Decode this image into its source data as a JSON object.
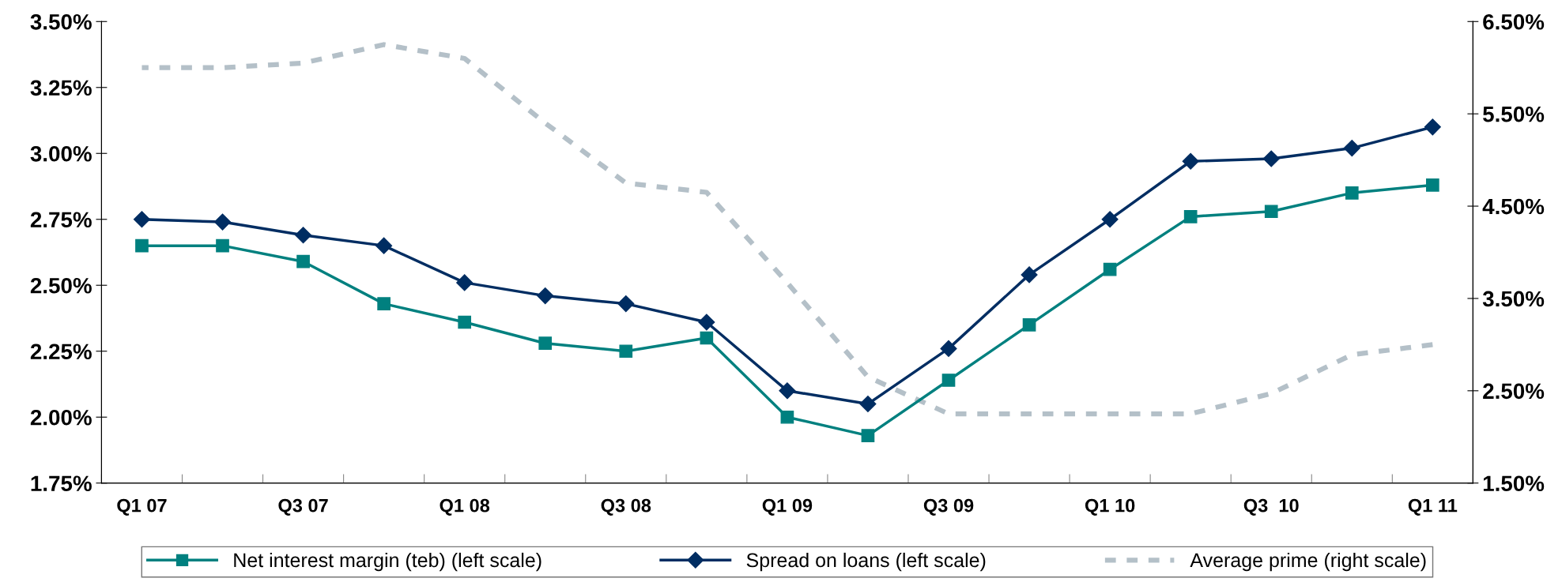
{
  "chart_data": {
    "type": "line",
    "categories": [
      "Q1 07",
      null,
      "Q3 07",
      null,
      "Q1 08",
      null,
      "Q3 08",
      null,
      "Q1 09",
      null,
      "Q3 09",
      null,
      "Q1 10",
      null,
      "Q3  10",
      null,
      "Q1 11"
    ],
    "series": [
      {
        "name": "Net interest margin (teb) (left scale)",
        "color": "#00807f",
        "marker": "square",
        "line_style": "solid",
        "values": [
          2.65,
          2.65,
          2.59,
          2.43,
          2.36,
          2.28,
          2.25,
          2.3,
          2.0,
          1.93,
          2.14,
          2.35,
          2.56,
          2.76,
          2.78,
          2.85,
          2.88
        ]
      },
      {
        "name": "Spread on loans (left scale)",
        "color": "#002d62",
        "marker": "diamond",
        "line_style": "solid",
        "values": [
          2.75,
          2.74,
          2.69,
          2.65,
          2.51,
          2.46,
          2.43,
          2.36,
          2.1,
          2.05,
          2.26,
          2.54,
          2.75,
          2.97,
          2.98,
          3.02,
          3.1
        ]
      },
      {
        "name": "Average prime (right scale)",
        "color": "#b4c0c8",
        "marker": "none",
        "line_style": "dashed",
        "axis": "y2",
        "values": [
          6.0,
          6.0,
          6.05,
          6.25,
          6.1,
          5.4,
          4.75,
          4.65,
          3.67,
          2.65,
          2.25,
          2.25,
          2.25,
          2.25,
          2.47,
          2.89,
          3.0
        ]
      }
    ],
    "ylim": [
      1.75,
      3.5
    ],
    "yticks": [
      {
        "value": 1.75,
        "label": "1.75%"
      },
      {
        "value": 2.0,
        "label": "2.00%"
      },
      {
        "value": 2.25,
        "label": "2.25%"
      },
      {
        "value": 2.5,
        "label": "2.50%"
      },
      {
        "value": 2.75,
        "label": "2.75%"
      },
      {
        "value": 3.0,
        "label": "3.00%"
      },
      {
        "value": 3.25,
        "label": "3.25%"
      },
      {
        "value": 3.5,
        "label": "3.50%"
      }
    ],
    "y2lim": [
      1.5,
      6.5
    ],
    "y2ticks": [
      {
        "value": 1.5,
        "label": "1.50%"
      },
      {
        "value": 2.5,
        "label": "2.50%"
      },
      {
        "value": 3.5,
        "label": "3.50%"
      },
      {
        "value": 4.5,
        "label": "4.50%"
      },
      {
        "value": 5.5,
        "label": "5.50%"
      },
      {
        "value": 6.5,
        "label": "6.50%"
      }
    ],
    "grid": false,
    "legend": "bottom"
  }
}
